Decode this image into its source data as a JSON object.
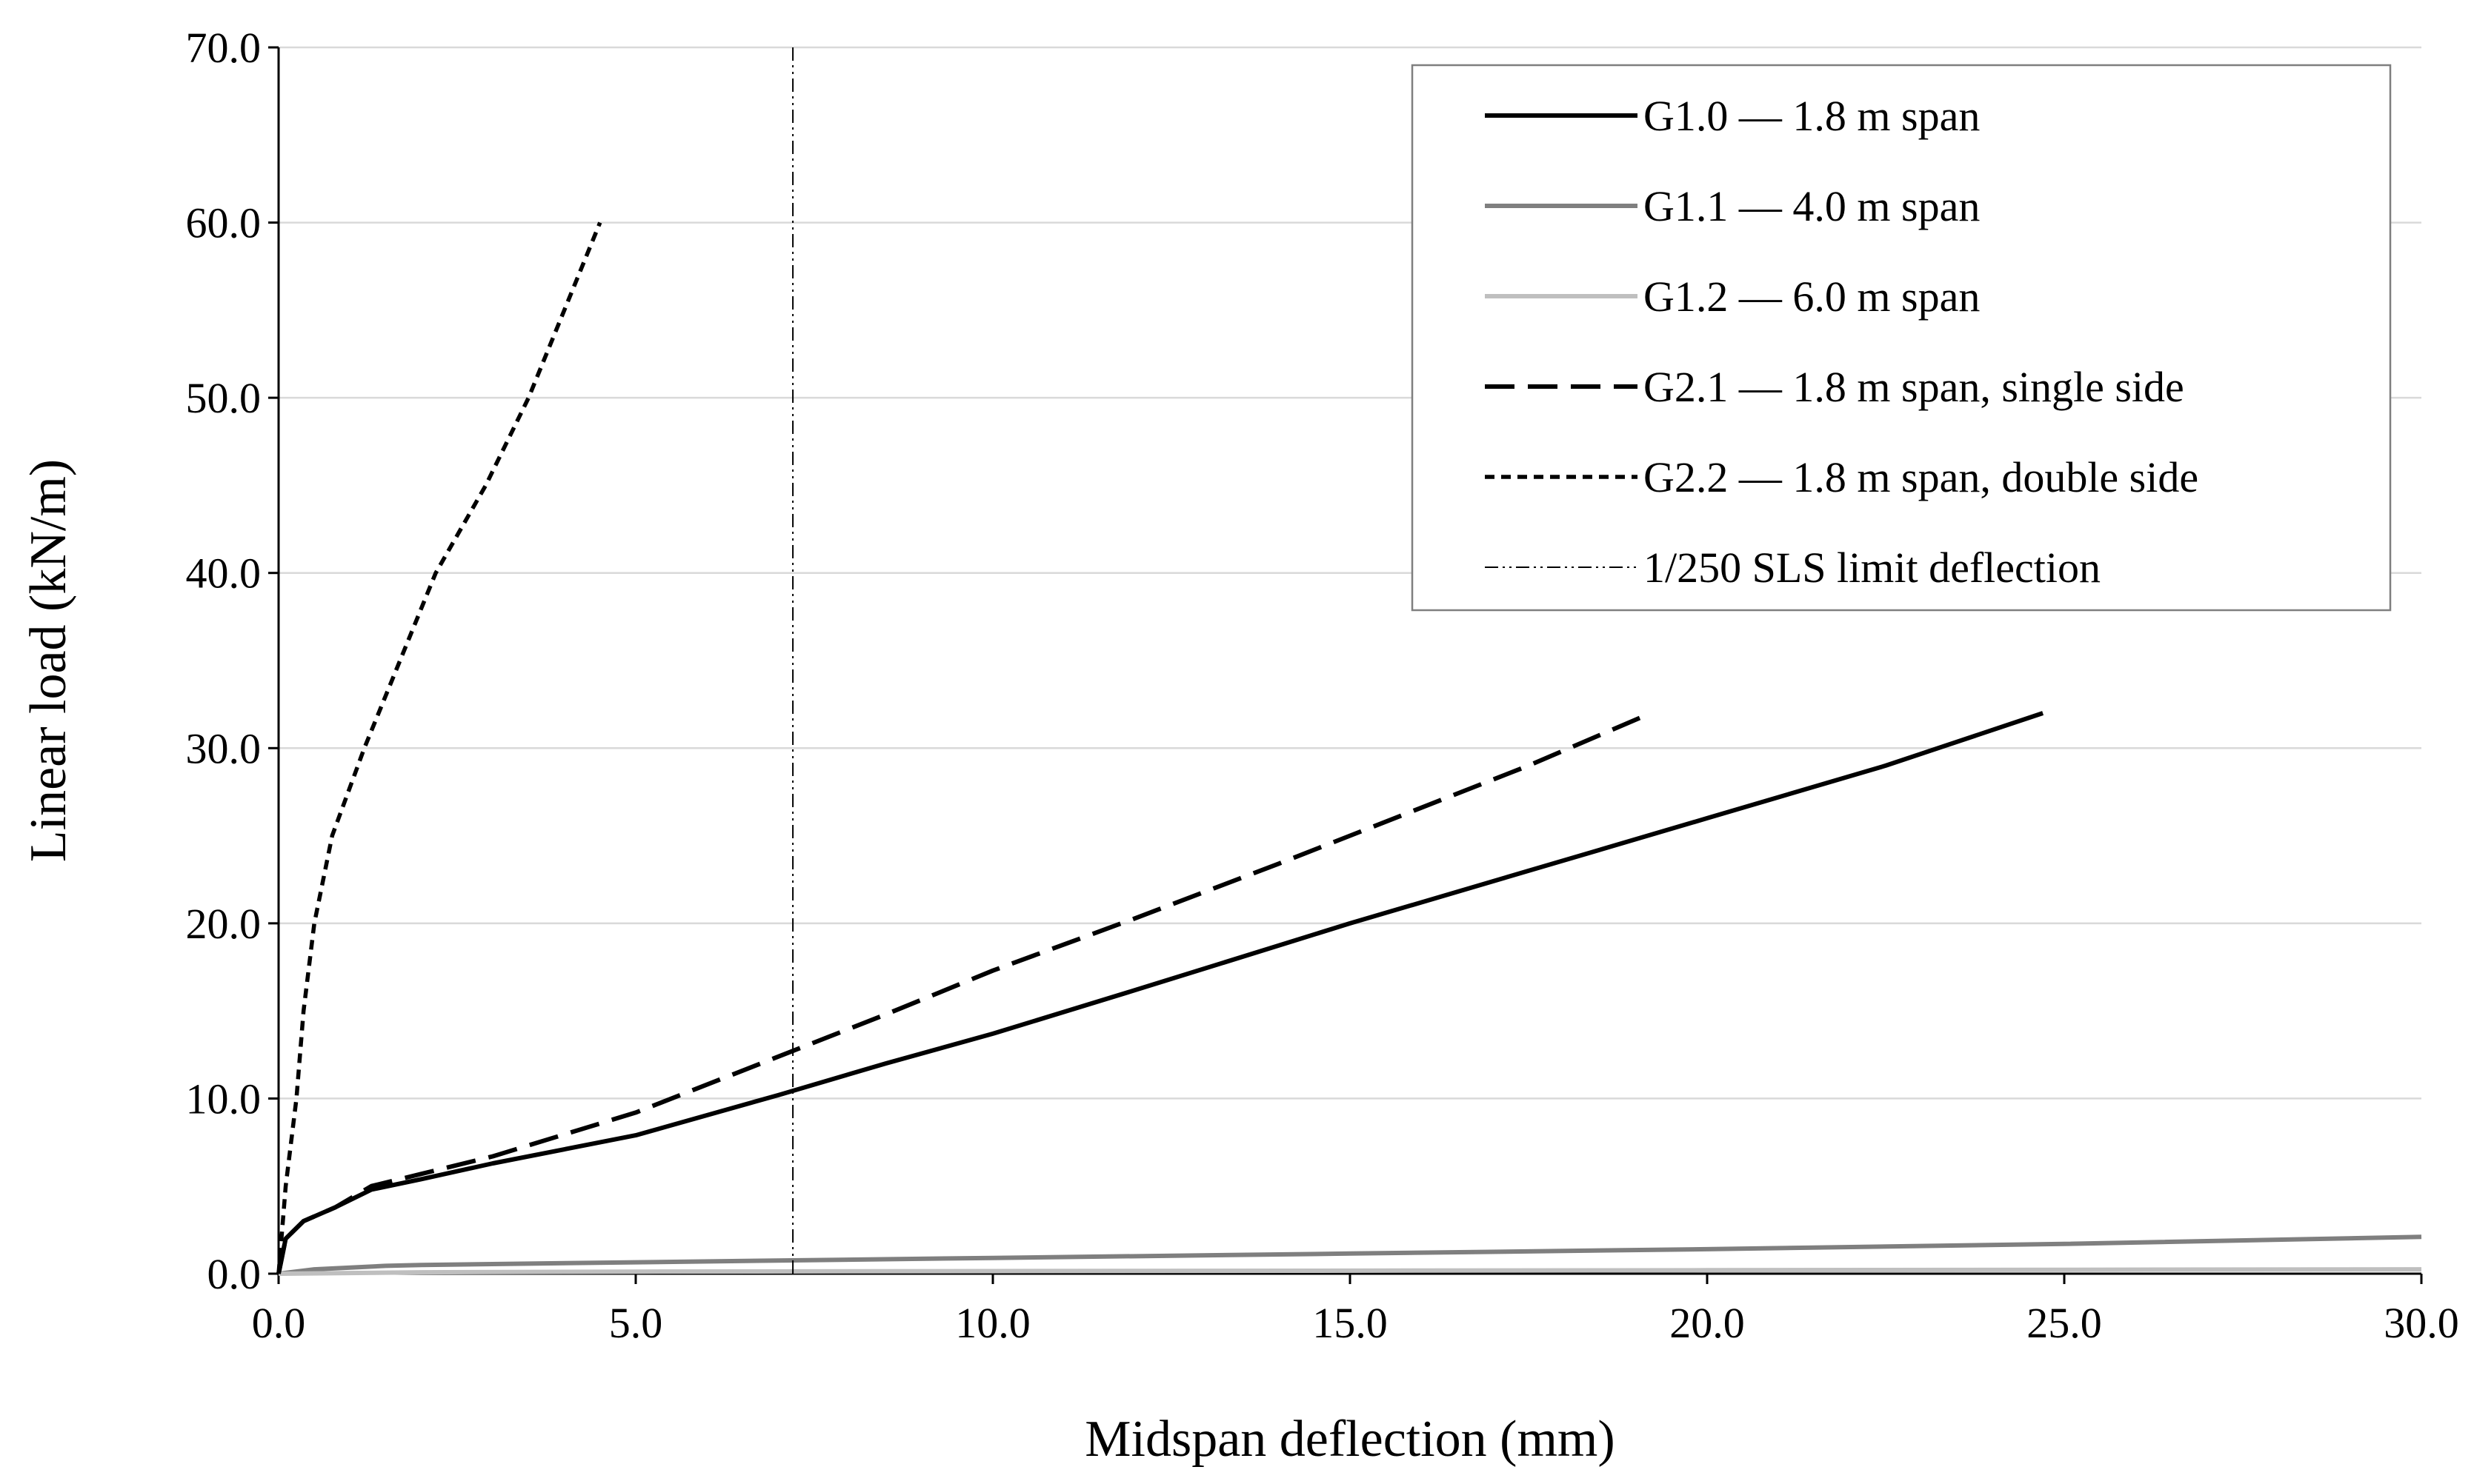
{
  "chart_data": {
    "type": "line",
    "title": "",
    "xlabel": "Midspan deflection (mm)",
    "ylabel": "Linear load (kN/m)",
    "xlim": [
      0,
      30
    ],
    "ylim": [
      0,
      70
    ],
    "x_ticks": [
      0,
      5,
      10,
      15,
      20,
      25,
      30
    ],
    "y_ticks": [
      0,
      10,
      20,
      30,
      40,
      50,
      60,
      70
    ],
    "x_tick_labels": [
      "0.0",
      "5.0",
      "10.0",
      "15.0",
      "20.0",
      "25.0",
      "30.0"
    ],
    "y_tick_labels": [
      "0.0",
      "10.0",
      "20.0",
      "30.0",
      "40.0",
      "50.0",
      "60.0",
      "70.0"
    ],
    "grid": "horizontal",
    "legend_position": "top-right",
    "series": [
      {
        "name": "G1.0 — 1.8 m span",
        "color": "#000000",
        "style": "solid",
        "points": [
          [
            0,
            0
          ],
          [
            0.1,
            2
          ],
          [
            0.35,
            3
          ],
          [
            0.8,
            3.8
          ],
          [
            1.3,
            4.8
          ],
          [
            2,
            5.4
          ],
          [
            3,
            6.3
          ],
          [
            5,
            7.9
          ],
          [
            7,
            10.2
          ],
          [
            8.5,
            12
          ],
          [
            10,
            13.7
          ],
          [
            12,
            16.2
          ],
          [
            15,
            20
          ],
          [
            17.5,
            23
          ],
          [
            20,
            26
          ],
          [
            22.5,
            29
          ],
          [
            24.7,
            32
          ]
        ]
      },
      {
        "name": "G1.1 — 4.0 m span",
        "color": "#7f7f7f",
        "style": "solid",
        "points": [
          [
            0,
            0
          ],
          [
            0.5,
            0.25
          ],
          [
            1.5,
            0.45
          ],
          [
            2,
            0.5
          ],
          [
            5,
            0.65
          ],
          [
            10,
            0.9
          ],
          [
            15,
            1.15
          ],
          [
            20,
            1.4
          ],
          [
            25,
            1.7
          ],
          [
            30,
            2.1
          ]
        ]
      },
      {
        "name": "G1.2 — 6.0 m span",
        "color": "#bfbfbf",
        "style": "solid",
        "points": [
          [
            0,
            0
          ],
          [
            2,
            0.08
          ],
          [
            5,
            0.12
          ],
          [
            10,
            0.15
          ],
          [
            20,
            0.2
          ],
          [
            30,
            0.25
          ]
        ]
      },
      {
        "name": "G2.1 — 1.8 m span, single side",
        "color": "#000000",
        "style": "dashed",
        "points": [
          [
            0,
            0
          ],
          [
            0.1,
            2
          ],
          [
            0.35,
            3
          ],
          [
            0.8,
            3.8
          ],
          [
            1.3,
            5
          ],
          [
            2,
            5.7
          ],
          [
            3,
            6.7
          ],
          [
            5,
            9.2
          ],
          [
            7,
            12.4
          ],
          [
            8.5,
            14.8
          ],
          [
            10,
            17.3
          ],
          [
            12,
            20.3
          ],
          [
            14,
            23.4
          ],
          [
            16,
            26.6
          ],
          [
            17.5,
            29
          ],
          [
            19.1,
            31.8
          ]
        ]
      },
      {
        "name": "G2.2 — 1.8 m span, double side",
        "color": "#000000",
        "style": "dotted",
        "points": [
          [
            0,
            0
          ],
          [
            0.1,
            5
          ],
          [
            0.25,
            10
          ],
          [
            0.35,
            15
          ],
          [
            0.5,
            20
          ],
          [
            0.75,
            25
          ],
          [
            1.2,
            30
          ],
          [
            1.7,
            35
          ],
          [
            2.2,
            40
          ],
          [
            2.9,
            45
          ],
          [
            3.5,
            50
          ],
          [
            4.0,
            55
          ],
          [
            4.5,
            60
          ]
        ]
      },
      {
        "name": "1/250 SLS limit deflection",
        "color": "#000000",
        "style": "dash-dot-dot",
        "points": [
          [
            7.2,
            0
          ],
          [
            7.2,
            70
          ]
        ]
      }
    ]
  }
}
